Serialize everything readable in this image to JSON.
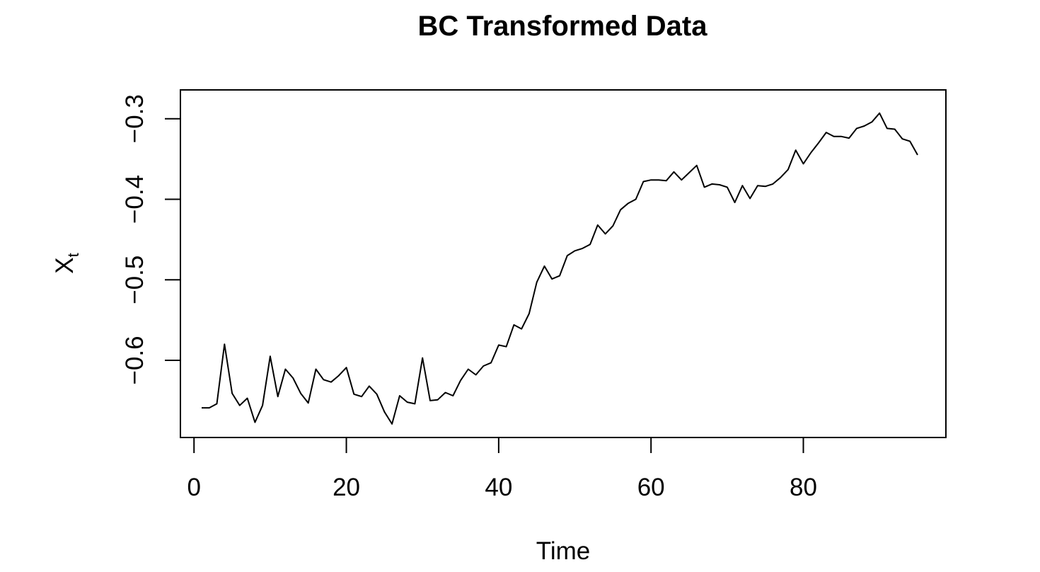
{
  "chart_data": {
    "type": "line",
    "title": "BC Transformed Data",
    "xlabel": "Time",
    "ylabel": {
      "base": "X",
      "subscript": "t"
    },
    "xlim": [
      1,
      95
    ],
    "ylim": [
      -0.68,
      -0.28
    ],
    "x_ticks": [
      {
        "value": 0,
        "label": "0"
      },
      {
        "value": 20,
        "label": "20"
      },
      {
        "value": 40,
        "label": "40"
      },
      {
        "value": 60,
        "label": "60"
      },
      {
        "value": 80,
        "label": "80"
      }
    ],
    "y_ticks": [
      {
        "value": -0.6,
        "label": "−0.6"
      },
      {
        "value": -0.5,
        "label": "−0.5"
      },
      {
        "value": -0.4,
        "label": "−0.4"
      },
      {
        "value": -0.3,
        "label": "−0.3"
      }
    ],
    "grid": false,
    "legend": "none",
    "series": [
      {
        "color": "#000000",
        "x": [
          1,
          2,
          3,
          4,
          5,
          6,
          7,
          8,
          9,
          10,
          11,
          12,
          13,
          14,
          15,
          16,
          17,
          18,
          19,
          20,
          21,
          22,
          23,
          24,
          25,
          26,
          27,
          28,
          29,
          30,
          31,
          32,
          33,
          34,
          35,
          36,
          37,
          38,
          39,
          40,
          41,
          42,
          43,
          44,
          45,
          46,
          47,
          48,
          49,
          50,
          51,
          52,
          53,
          54,
          55,
          56,
          57,
          58,
          59,
          60,
          61,
          62,
          63,
          64,
          65,
          66,
          67,
          68,
          69,
          70,
          71,
          72,
          73,
          74,
          75,
          76,
          77,
          78,
          79,
          80,
          81,
          82,
          83,
          84,
          85,
          86,
          87,
          88,
          89,
          90,
          91,
          92,
          93,
          94,
          95
        ],
        "values": [
          -0.659,
          -0.659,
          -0.654,
          -0.58,
          -0.641,
          -0.656,
          -0.647,
          -0.677,
          -0.656,
          -0.595,
          -0.645,
          -0.611,
          -0.622,
          -0.641,
          -0.653,
          -0.611,
          -0.624,
          -0.627,
          -0.619,
          -0.609,
          -0.642,
          -0.645,
          -0.632,
          -0.642,
          -0.664,
          -0.679,
          -0.644,
          -0.652,
          -0.654,
          -0.597,
          -0.65,
          -0.649,
          -0.64,
          -0.644,
          -0.625,
          -0.611,
          -0.618,
          -0.607,
          -0.603,
          -0.581,
          -0.583,
          -0.556,
          -0.561,
          -0.542,
          -0.503,
          -0.483,
          -0.499,
          -0.495,
          -0.47,
          -0.464,
          -0.461,
          -0.456,
          -0.432,
          -0.443,
          -0.433,
          -0.413,
          -0.405,
          -0.4,
          -0.378,
          -0.376,
          -0.376,
          -0.377,
          -0.366,
          -0.376,
          -0.367,
          -0.358,
          -0.385,
          -0.381,
          -0.382,
          -0.385,
          -0.404,
          -0.383,
          -0.399,
          -0.383,
          -0.384,
          -0.381,
          -0.373,
          -0.363,
          -0.339,
          -0.356,
          -0.342,
          -0.33,
          -0.317,
          -0.322,
          -0.322,
          -0.324,
          -0.312,
          -0.309,
          -0.304,
          -0.293,
          -0.312,
          -0.313,
          -0.325,
          -0.328,
          -0.345
        ]
      }
    ]
  }
}
